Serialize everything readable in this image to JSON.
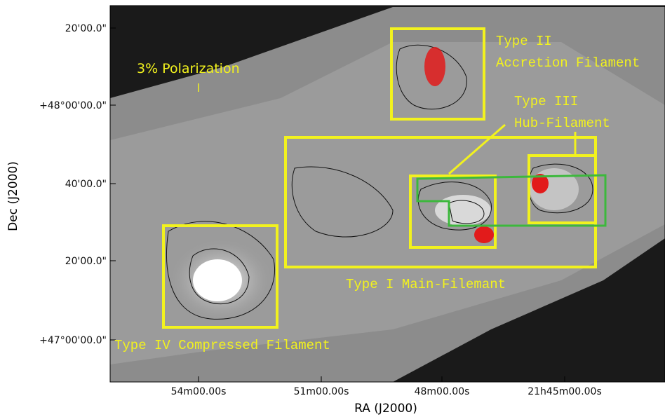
{
  "axes": {
    "x_label": "RA (J2000)",
    "y_label": "Dec (J2000)",
    "x_ticks": [
      "54m00.00s",
      "51m00.00s",
      "48m00.00s",
      "21h45m00.00s"
    ],
    "y_ticks": [
      "20'00.0\"",
      "+48°00'00.0\"",
      "40'00.0\"",
      "20'00.0\"",
      "+47°00'00.0\""
    ]
  },
  "scale_label": "3% Polarization",
  "annotations": [
    "Type II",
    "Accretion Filament",
    "Type III",
    "Hub-Filament",
    "Type I Main-Filemant",
    "Type IV Compressed Filament"
  ]
}
